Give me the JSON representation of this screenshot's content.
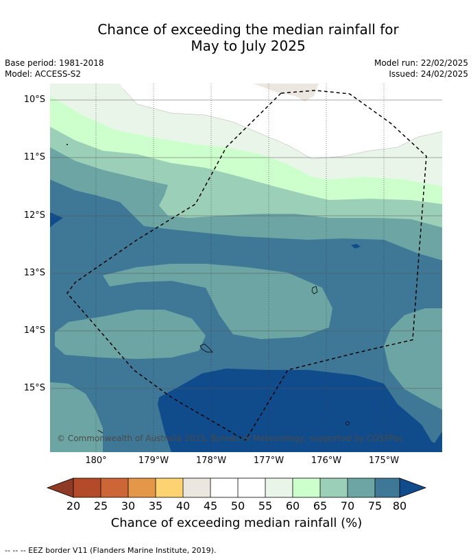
{
  "title": {
    "line1": "Chance of exceeding the median rainfall for",
    "line2": "May to July 2025"
  },
  "meta": {
    "base_period": "Base period: 1981-2018",
    "model": "Model: ACCESS-S2",
    "model_run": "Model run: 22/02/2025",
    "issued": "Issued: 24/02/2025"
  },
  "map": {
    "lat_labels": [
      "10°S",
      "11°S",
      "12°S",
      "13°S",
      "14°S",
      "15°S"
    ],
    "lon_labels": [
      "180°",
      "179°W",
      "178°W",
      "177°W",
      "176°W",
      "175°W"
    ],
    "copyright": "© Commonwealth of Australia 2025, Bureau of Meteorology, supported by COSPPac"
  },
  "colorbar": {
    "ticks": [
      "20",
      "25",
      "30",
      "35",
      "40",
      "45",
      "50",
      "55",
      "60",
      "65",
      "70",
      "75",
      "80"
    ],
    "colors": {
      "below_20": "#8f3a25",
      "c20_25": "#b34a2a",
      "c25_30": "#cd6636",
      "c30_35": "#e49649",
      "c35_40": "#fdd270",
      "c40_45": "#ebe6e0",
      "c45_50": "#ffffff",
      "c50_55": "#ffffff",
      "c55_60": "#eaf5ea",
      "c60_65": "#ccffcc",
      "c65_70": "#9ccfb8",
      "c70_75": "#6da5a5",
      "c75_80": "#3f7896",
      "above_80": "#104c8c"
    },
    "label": "Chance of exceeding median rainfall (%)"
  },
  "footer": "--  --  -- EEZ border V11 (Flanders Marine Institute, 2019)."
}
